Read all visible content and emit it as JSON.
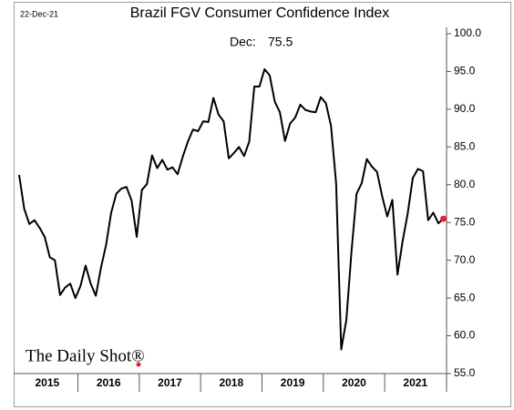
{
  "chart_data": {
    "type": "line",
    "title": "Brazil FGV Consumer Confidence Index",
    "date_note": "22-Dec-21",
    "annotation": "Dec:",
    "source": "The Daily Shot®",
    "color": "#000000",
    "marker_color": "#e8202a",
    "categories": [
      null,
      null,
      null,
      null,
      null,
      null,
      "2015",
      null,
      null,
      null,
      null,
      null,
      null,
      null,
      null,
      null,
      null,
      null,
      "2016",
      null,
      null,
      null,
      null,
      null,
      null,
      null,
      null,
      null,
      null,
      null,
      "2017",
      null,
      null,
      null,
      null,
      null,
      null,
      null,
      null,
      null,
      null,
      null,
      "2018",
      null,
      null,
      null,
      null,
      null,
      null,
      null,
      null,
      null,
      null,
      null,
      "2019",
      null,
      null,
      null,
      null,
      null,
      null,
      null,
      null,
      null,
      null,
      null,
      "2020",
      null,
      null,
      null,
      null,
      null,
      null,
      null,
      null,
      null,
      null,
      null,
      "2021",
      null,
      null,
      null,
      null,
      null
    ],
    "values": [
      81.3,
      76.8,
      74.8,
      75.3,
      74.3,
      73.1,
      70.4,
      70.0,
      65.4,
      66.4,
      66.9,
      65.0,
      66.6,
      69.3,
      66.9,
      65.3,
      69.0,
      72.0,
      76.3,
      78.8,
      79.5,
      79.7,
      77.9,
      73.1,
      79.3,
      80.1,
      83.9,
      82.2,
      83.3,
      82.0,
      82.3,
      81.4,
      83.7,
      85.7,
      87.3,
      87.1,
      88.4,
      88.3,
      91.5,
      89.3,
      88.4,
      83.5,
      84.2,
      85.0,
      83.8,
      85.7,
      93.0,
      93.0,
      95.3,
      94.5,
      91.0,
      89.6,
      85.8,
      88.1,
      88.9,
      90.6,
      89.9,
      89.7,
      89.6,
      91.6,
      90.8,
      87.8,
      80.2,
      58.2,
      62.1,
      71.1,
      78.8,
      80.2,
      83.4,
      82.4,
      81.7,
      78.5,
      75.8,
      78.0,
      68.1,
      72.5,
      76.2,
      80.9,
      82.1,
      81.8,
      75.3,
      76.3,
      74.9,
      75.5
    ],
    "ylim": [
      55,
      100
    ],
    "yticks": [
      {
        "value": 55,
        "label": "55.0"
      },
      {
        "value": 60,
        "label": "60.0"
      },
      {
        "value": 65,
        "label": "65.0"
      },
      {
        "value": 70,
        "label": "70.0"
      },
      {
        "value": 75,
        "label": "75.0"
      },
      {
        "value": 80,
        "label": "80.0"
      },
      {
        "value": 85,
        "label": "85.0"
      },
      {
        "value": 90,
        "label": "90.0"
      },
      {
        "value": 95,
        "label": "95.0"
      },
      {
        "value": 100,
        "label": "100.0"
      }
    ],
    "grid": false
  }
}
